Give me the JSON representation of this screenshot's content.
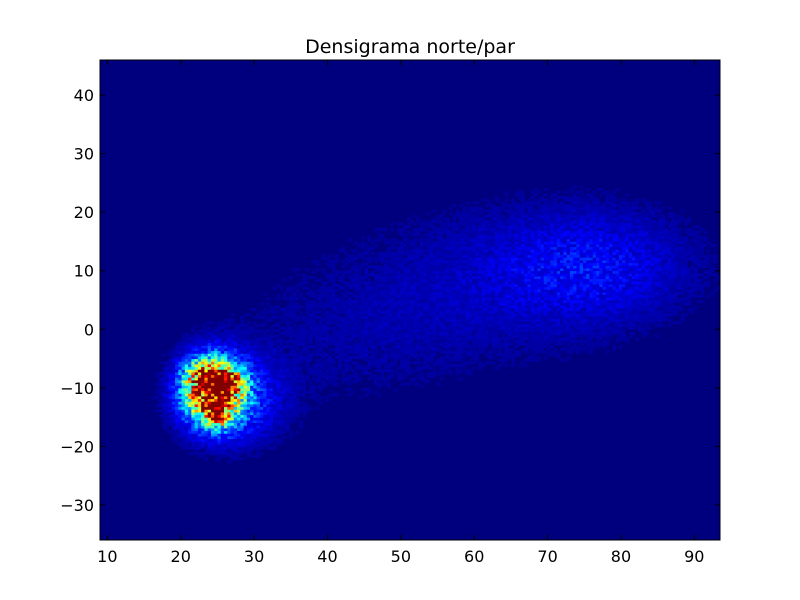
{
  "chart_data": {
    "type": "heatmap",
    "title": "Densigrama norte/par",
    "xlabel": "",
    "ylabel": "",
    "xlim": [
      9,
      93.5
    ],
    "ylim": [
      -36,
      46
    ],
    "x_ticks": [
      10,
      20,
      30,
      40,
      50,
      60,
      70,
      80,
      90
    ],
    "y_ticks": [
      -30,
      -20,
      -10,
      0,
      10,
      20,
      30,
      40
    ],
    "bins": [
      190,
      180
    ],
    "colormap": "jet",
    "grid": false,
    "legend": "none",
    "density_components": [
      {
        "x": 24.5,
        "y": -10.5,
        "sx": 2.6,
        "sy": 3.6,
        "weight": 1.0
      },
      {
        "x": 26.5,
        "y": -9.0,
        "sx": 1.3,
        "sy": 1.3,
        "weight": 0.55
      },
      {
        "x": 24.8,
        "y": -14.5,
        "sx": 1.1,
        "sy": 1.4,
        "weight": 0.45
      },
      {
        "x": 22.5,
        "y": -8.0,
        "sx": 1.5,
        "sy": 2.0,
        "weight": 0.25
      },
      {
        "x": 27.0,
        "y": -12.0,
        "sx": 4.5,
        "sy": 5.0,
        "weight": 0.18
      },
      {
        "x": 76.0,
        "y": 11.0,
        "sx": 9.0,
        "sy": 6.5,
        "weight": 0.11
      },
      {
        "x": 62.0,
        "y": 8.0,
        "sx": 14.0,
        "sy": 9.0,
        "weight": 0.05
      },
      {
        "x": 42.0,
        "y": -2.0,
        "sx": 13.0,
        "sy": 9.0,
        "weight": 0.03
      }
    ]
  }
}
